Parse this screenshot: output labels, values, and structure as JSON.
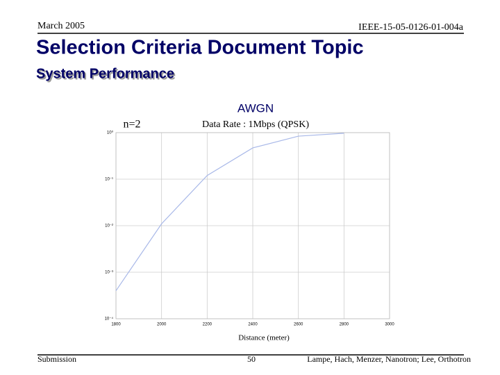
{
  "header": {
    "date": "March 2005",
    "doc_id": "IEEE-15-05-0126-01-004a"
  },
  "title": "Selection Criteria Document Topic",
  "subtitle": "System Performance",
  "chart_data": {
    "type": "line",
    "title": "AWGN",
    "subtitle": "Data Rate : 1Mbps (QPSK)",
    "annotation": "n=2",
    "x_label": "Distance (meter)",
    "x": [
      1800,
      2000,
      2200,
      2400,
      2600,
      2800
    ],
    "values": [
      0.0004,
      0.011,
      0.12,
      0.47,
      0.84,
      0.97
    ],
    "color": "#a8b8e8",
    "xlim": [
      1800,
      3000
    ],
    "xticks": [
      1800,
      2000,
      2200,
      2400,
      2600,
      2800,
      3000
    ],
    "ylim": [
      0.0001,
      1
    ],
    "log_y": true,
    "yticks": [
      {
        "value": 0.0001,
        "label": "10⁻⁴"
      },
      {
        "value": 0.001,
        "label": "10⁻³"
      },
      {
        "value": 0.01,
        "label": "10⁻²"
      },
      {
        "value": 0.1,
        "label": "10⁻¹"
      },
      {
        "value": 1,
        "label": "10⁰"
      }
    ],
    "grid": true
  },
  "footer": {
    "left": "Submission",
    "page": "50",
    "right": "Lampe, Hach, Menzer, Nanotron; Lee, Orthotron"
  }
}
